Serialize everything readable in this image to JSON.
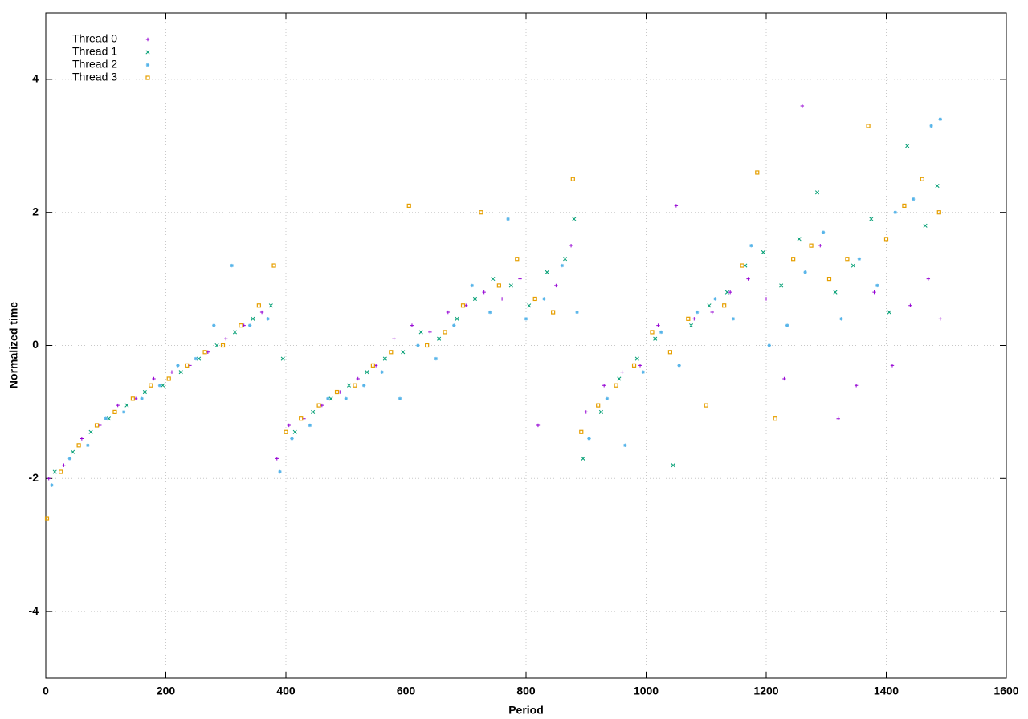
{
  "chart_data": {
    "type": "scatter",
    "x_label": "Period",
    "y_label": "Normalized time",
    "xlim": [
      0,
      1600
    ],
    "xticks": [
      0,
      200,
      400,
      600,
      800,
      1000,
      1200,
      1400,
      1600
    ],
    "ylim": [
      -5,
      5
    ],
    "yticks": [
      -4,
      -2,
      0,
      2,
      4
    ],
    "grid": true,
    "legend": "top-left",
    "series": [
      {
        "name": "Thread 0",
        "color": "#9400d3",
        "marker": "plus",
        "x": [
          5,
          30,
          60,
          90,
          120,
          150,
          180,
          210,
          240,
          270,
          300,
          330,
          360,
          385,
          405,
          430,
          460,
          490,
          520,
          550,
          580,
          610,
          640,
          670,
          700,
          730,
          760,
          790,
          820,
          850,
          875,
          900,
          930,
          960,
          990,
          1020,
          1050,
          1080,
          1110,
          1140,
          1170,
          1200,
          1230,
          1260,
          1290,
          1320,
          1350,
          1380,
          1410,
          1440,
          1470,
          1490
        ],
        "values": [
          -2.0,
          -1.8,
          -1.4,
          -1.2,
          -0.9,
          -0.8,
          -0.5,
          -0.4,
          -0.3,
          -0.1,
          0.1,
          0.3,
          0.5,
          -1.7,
          -1.2,
          -1.1,
          -0.9,
          -0.7,
          -0.5,
          -0.3,
          0.1,
          0.3,
          0.2,
          0.5,
          0.6,
          0.8,
          0.7,
          1.0,
          -1.2,
          0.9,
          1.5,
          -1.0,
          -0.6,
          -0.4,
          -0.3,
          0.3,
          2.1,
          0.4,
          0.5,
          0.8,
          1.0,
          0.7,
          -0.5,
          3.6,
          1.5,
          -1.1,
          -0.6,
          0.8,
          -0.3,
          0.6,
          1.0,
          0.4
        ]
      },
      {
        "name": "Thread 1",
        "color": "#009e73",
        "marker": "cross",
        "x": [
          15,
          45,
          75,
          105,
          135,
          165,
          195,
          225,
          255,
          285,
          315,
          345,
          375,
          395,
          415,
          445,
          475,
          505,
          535,
          565,
          595,
          625,
          655,
          685,
          715,
          745,
          775,
          805,
          835,
          865,
          880,
          895,
          925,
          955,
          985,
          1015,
          1045,
          1075,
          1105,
          1135,
          1165,
          1195,
          1225,
          1255,
          1285,
          1315,
          1345,
          1375,
          1405,
          1435,
          1465,
          1485
        ],
        "values": [
          -1.9,
          -1.6,
          -1.3,
          -1.1,
          -0.9,
          -0.7,
          -0.6,
          -0.4,
          -0.2,
          0.0,
          0.2,
          0.4,
          0.6,
          -0.2,
          -1.3,
          -1.0,
          -0.8,
          -0.6,
          -0.4,
          -0.2,
          -0.1,
          0.2,
          0.1,
          0.4,
          0.7,
          1.0,
          0.9,
          0.6,
          1.1,
          1.3,
          1.9,
          -1.7,
          -1.0,
          -0.5,
          -0.2,
          0.1,
          -1.8,
          0.3,
          0.6,
          0.8,
          1.2,
          1.4,
          0.9,
          1.6,
          2.3,
          0.8,
          1.2,
          1.9,
          0.5,
          3.0,
          1.8,
          2.4
        ]
      },
      {
        "name": "Thread 2",
        "color": "#56b4e9",
        "marker": "star",
        "x": [
          10,
          40,
          70,
          100,
          130,
          160,
          190,
          220,
          250,
          280,
          310,
          340,
          370,
          390,
          410,
          440,
          470,
          500,
          530,
          560,
          590,
          620,
          650,
          680,
          710,
          740,
          770,
          800,
          830,
          860,
          885,
          905,
          935,
          965,
          995,
          1025,
          1055,
          1085,
          1115,
          1145,
          1175,
          1205,
          1235,
          1265,
          1295,
          1325,
          1355,
          1385,
          1415,
          1445,
          1475,
          1490
        ],
        "values": [
          -2.1,
          -1.7,
          -1.5,
          -1.1,
          -1.0,
          -0.8,
          -0.6,
          -0.3,
          -0.2,
          0.3,
          1.2,
          0.3,
          0.4,
          -1.9,
          -1.4,
          -1.2,
          -0.8,
          -0.8,
          -0.6,
          -0.4,
          -0.8,
          0.0,
          -0.2,
          0.3,
          0.9,
          0.5,
          1.9,
          0.4,
          0.7,
          1.2,
          0.5,
          -1.4,
          -0.8,
          -1.5,
          -0.4,
          0.2,
          -0.3,
          0.5,
          0.7,
          0.4,
          1.5,
          0.0,
          0.3,
          1.1,
          1.7,
          0.4,
          1.3,
          0.9,
          2.0,
          2.2,
          3.3,
          3.4
        ]
      },
      {
        "name": "Thread 3",
        "color": "#e69f00",
        "marker": "square",
        "x": [
          2,
          25,
          55,
          85,
          115,
          145,
          175,
          205,
          235,
          265,
          295,
          325,
          355,
          380,
          400,
          425,
          455,
          485,
          515,
          545,
          575,
          605,
          635,
          665,
          695,
          725,
          755,
          785,
          815,
          845,
          878,
          892,
          920,
          950,
          980,
          1010,
          1040,
          1070,
          1100,
          1130,
          1160,
          1185,
          1215,
          1245,
          1275,
          1305,
          1335,
          1370,
          1400,
          1430,
          1460,
          1488
        ],
        "values": [
          -2.6,
          -1.9,
          -1.5,
          -1.2,
          -1.0,
          -0.8,
          -0.6,
          -0.5,
          -0.3,
          -0.1,
          0.0,
          0.3,
          0.6,
          1.2,
          -1.3,
          -1.1,
          -0.9,
          -0.7,
          -0.6,
          -0.3,
          -0.1,
          2.1,
          0.0,
          0.2,
          0.6,
          2.0,
          0.9,
          1.3,
          0.7,
          0.5,
          2.5,
          -1.3,
          -0.9,
          -0.6,
          -0.3,
          0.2,
          -0.1,
          0.4,
          -0.9,
          0.6,
          1.2,
          2.6,
          -1.1,
          1.3,
          1.5,
          1.0,
          1.3,
          3.3,
          1.6,
          2.1,
          2.5,
          2.0
        ]
      }
    ]
  }
}
